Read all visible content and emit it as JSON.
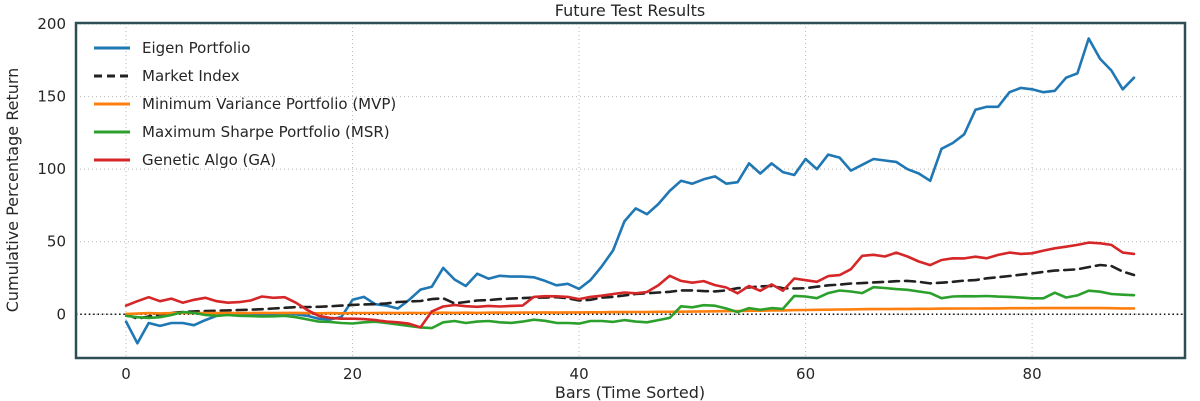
{
  "chart_data": {
    "type": "line",
    "title": "Future Test Results",
    "xlabel": "Bars (Time Sorted)",
    "ylabel": "Cumulative Percentage Return",
    "x_note": "x value = bar index, 0 through 89",
    "xlim": [
      -4.42,
      93.5
    ],
    "ylim": [
      -30.1,
      200.7
    ],
    "xticks": [
      0,
      20,
      40,
      60,
      80
    ],
    "yticks": [
      0,
      50,
      100,
      150,
      200
    ],
    "grid": "dotted",
    "zero_line": true,
    "legend_position": "upper left",
    "legend_frame": false,
    "series": [
      {
        "name": "Eigen Portfolio",
        "color": "#1f77b4",
        "style": "solid",
        "values": [
          -5,
          -20,
          -6,
          -8,
          -6,
          -6,
          -7.5,
          -4,
          -1,
          0,
          -0.5,
          0.5,
          -0.5,
          0,
          0.5,
          0,
          -1,
          -3,
          -3.5,
          -2,
          10,
          12,
          7,
          6,
          4,
          10,
          17,
          19,
          32,
          24,
          19.5,
          28,
          24.5,
          26.5,
          26,
          26,
          25.5,
          23,
          20,
          21,
          17.5,
          23.5,
          33,
          44,
          64,
          73,
          69,
          76,
          85,
          92,
          90,
          93,
          95,
          90,
          91,
          104,
          97,
          104,
          98,
          96,
          107,
          100,
          110,
          108,
          99,
          103,
          107,
          106,
          105,
          100,
          97,
          92,
          114,
          118,
          124,
          141,
          143,
          143,
          153,
          156,
          155,
          153,
          154,
          163,
          166,
          190,
          176,
          168,
          155,
          163
        ]
      },
      {
        "name": "Market Index",
        "color": "#212121",
        "style": "dashed",
        "values": [
          0,
          -3,
          -1.5,
          0,
          1,
          1.5,
          2,
          2.3,
          2.5,
          2.7,
          3,
          3.2,
          3.5,
          4,
          4.5,
          5,
          5,
          5.2,
          5.5,
          6,
          6.5,
          6.8,
          7,
          7.5,
          8.5,
          8.8,
          9.2,
          10.5,
          11,
          7.5,
          8.5,
          9.5,
          9.8,
          10.5,
          10.8,
          11.2,
          11.5,
          11.5,
          11.8,
          11,
          9.5,
          10,
          11.5,
          12,
          13,
          14,
          14.5,
          15,
          15.5,
          16.5,
          16.5,
          16,
          15.8,
          16.5,
          18,
          18.5,
          19.2,
          19.5,
          18,
          17.8,
          18,
          19,
          20,
          20.5,
          21.2,
          21.5,
          22,
          22.3,
          22.8,
          23,
          22.4,
          21.3,
          21.8,
          22.4,
          23.2,
          23.6,
          24.8,
          25.6,
          26.4,
          27.3,
          28.2,
          29.2,
          30.1,
          30.5,
          31,
          32.5,
          34,
          33.3,
          29.4,
          27.1
        ]
      },
      {
        "name": "Minimum Variance Portfolio (MVP)",
        "color": "#ff7f0e",
        "style": "solid",
        "values": [
          0.3,
          0.5,
          0.8,
          0.6,
          0.8,
          0.9,
          0.8,
          0.9,
          0.8,
          0.9,
          0.8,
          0.9,
          1,
          0.9,
          1,
          1,
          0.8,
          0.7,
          0.8,
          0.7,
          0.8,
          0.9,
          0.9,
          1,
          0.9,
          1,
          0.9,
          1,
          1.1,
          1,
          1.1,
          1,
          1.1,
          1.2,
          1.1,
          1.2,
          1.2,
          1.3,
          1.2,
          1.3,
          1.3,
          1.4,
          1.4,
          1.5,
          1.5,
          1.6,
          1.6,
          1.7,
          1.7,
          1.8,
          1.9,
          2,
          2.1,
          2.2,
          2.3,
          2.4,
          2.5,
          2.6,
          2.7,
          2.9,
          3,
          3.1,
          3.2,
          3.3,
          3.4,
          3.5,
          3.6,
          3.6,
          3.7,
          3.7,
          3.8,
          3.8,
          3.9,
          3.9,
          4,
          4,
          4.1,
          4.1,
          4.2,
          4.2,
          4.2,
          4.3,
          4.3,
          4.3,
          4.3,
          4.3,
          4.3,
          4.2,
          4.1,
          4.1
        ]
      },
      {
        "name": "Maximum Sharpe Portfolio (MSR)",
        "color": "#2ca02c",
        "style": "solid",
        "values": [
          -1,
          -2,
          -2.5,
          -2,
          -0.5,
          1.5,
          1,
          -0.5,
          -1,
          -0.5,
          -1,
          -1.2,
          -1.5,
          -1.4,
          -1,
          -2,
          -3.5,
          -5,
          -5.2,
          -6,
          -6.3,
          -5.5,
          -5.1,
          -6,
          -7,
          -8,
          -9,
          -9.5,
          -5.5,
          -4.6,
          -6,
          -5,
          -4.6,
          -5.5,
          -5.9,
          -5,
          -3.7,
          -4.5,
          -5.9,
          -6,
          -6.4,
          -4.6,
          -4.6,
          -5.2,
          -4,
          -5,
          -5.5,
          -4,
          -2.5,
          5.5,
          4.8,
          6.3,
          5.9,
          4,
          1.5,
          4.3,
          3.1,
          4.3,
          3.7,
          12.7,
          12.3,
          11.1,
          14.6,
          16.4,
          15.7,
          14.6,
          18.7,
          18.1,
          17.4,
          16.9,
          15.7,
          14.6,
          11.1,
          12.3,
          12.5,
          12.4,
          12.6,
          12.2,
          12,
          11.5,
          11,
          11,
          14.9,
          11.6,
          13,
          16.3,
          15.6,
          14,
          13.5,
          13.2
        ]
      },
      {
        "name": "Genetic Algo (GA)",
        "color": "#d62728",
        "style": "solid",
        "values": [
          6,
          9,
          11.8,
          9,
          10.8,
          8,
          10,
          11.4,
          9,
          8,
          8.4,
          9.5,
          12.3,
          11.4,
          11.8,
          8,
          3,
          -1,
          -2.5,
          -3,
          -3,
          -3.3,
          -4,
          -5,
          -5.5,
          -6.5,
          -9,
          2,
          5.4,
          6.4,
          5.6,
          5.2,
          5.8,
          5.4,
          5.8,
          6,
          12,
          12.5,
          12.4,
          12,
          10.5,
          12,
          12.8,
          14,
          15,
          14.5,
          15.4,
          20,
          26.5,
          23,
          21.8,
          22.9,
          20.1,
          18.5,
          14.5,
          19.5,
          16.2,
          20.6,
          16.2,
          24.7,
          23.5,
          22.4,
          26.3,
          27,
          31.1,
          40.3,
          41,
          39.8,
          42.5,
          39.8,
          36.4,
          33.9,
          37.4,
          38.6,
          38.5,
          39.7,
          38.6,
          40.9,
          42.5,
          41.6,
          42,
          43.9,
          45.5,
          46.6,
          47.8,
          49.4,
          48.9,
          47.8,
          42.5,
          41.6
        ]
      }
    ],
    "style_hints": {
      "grid_color": "#b8b8b8",
      "spine_color": "#2e4e56",
      "text_color": "#262626",
      "zero_line_color": "#111111",
      "line_width": 2.6
    }
  }
}
